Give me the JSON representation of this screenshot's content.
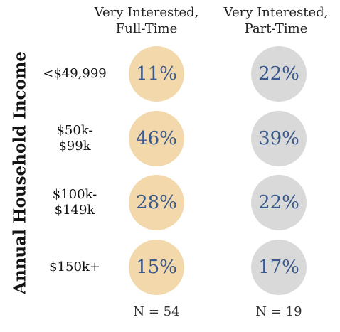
{
  "chart_data": {
    "type": "table",
    "columns": [
      {
        "name": "Very Interested, Full-Time",
        "lines": [
          "Very Interested,",
          "Full-Time"
        ],
        "n_label": "N = 54",
        "color": "#f2d8ab"
      },
      {
        "name": "Very Interested, Part-Time",
        "lines": [
          "Very Interested,",
          "Part-Time"
        ],
        "n_label": "N = 19",
        "color": "#d9d9d9"
      }
    ],
    "ylabel": "Annual Household Income",
    "rows": [
      {
        "label_lines": [
          "<$49,999"
        ],
        "values": [
          "11%",
          "22%"
        ]
      },
      {
        "label_lines": [
          "$50k-",
          "$99k"
        ],
        "values": [
          "46%",
          "39%"
        ]
      },
      {
        "label_lines": [
          "$100k-",
          "$149k"
        ],
        "values": [
          "28%",
          "22%"
        ]
      },
      {
        "label_lines": [
          "$150k+"
        ],
        "values": [
          "15%",
          "17%"
        ]
      }
    ],
    "value_text_color": "#3a5a8c"
  }
}
